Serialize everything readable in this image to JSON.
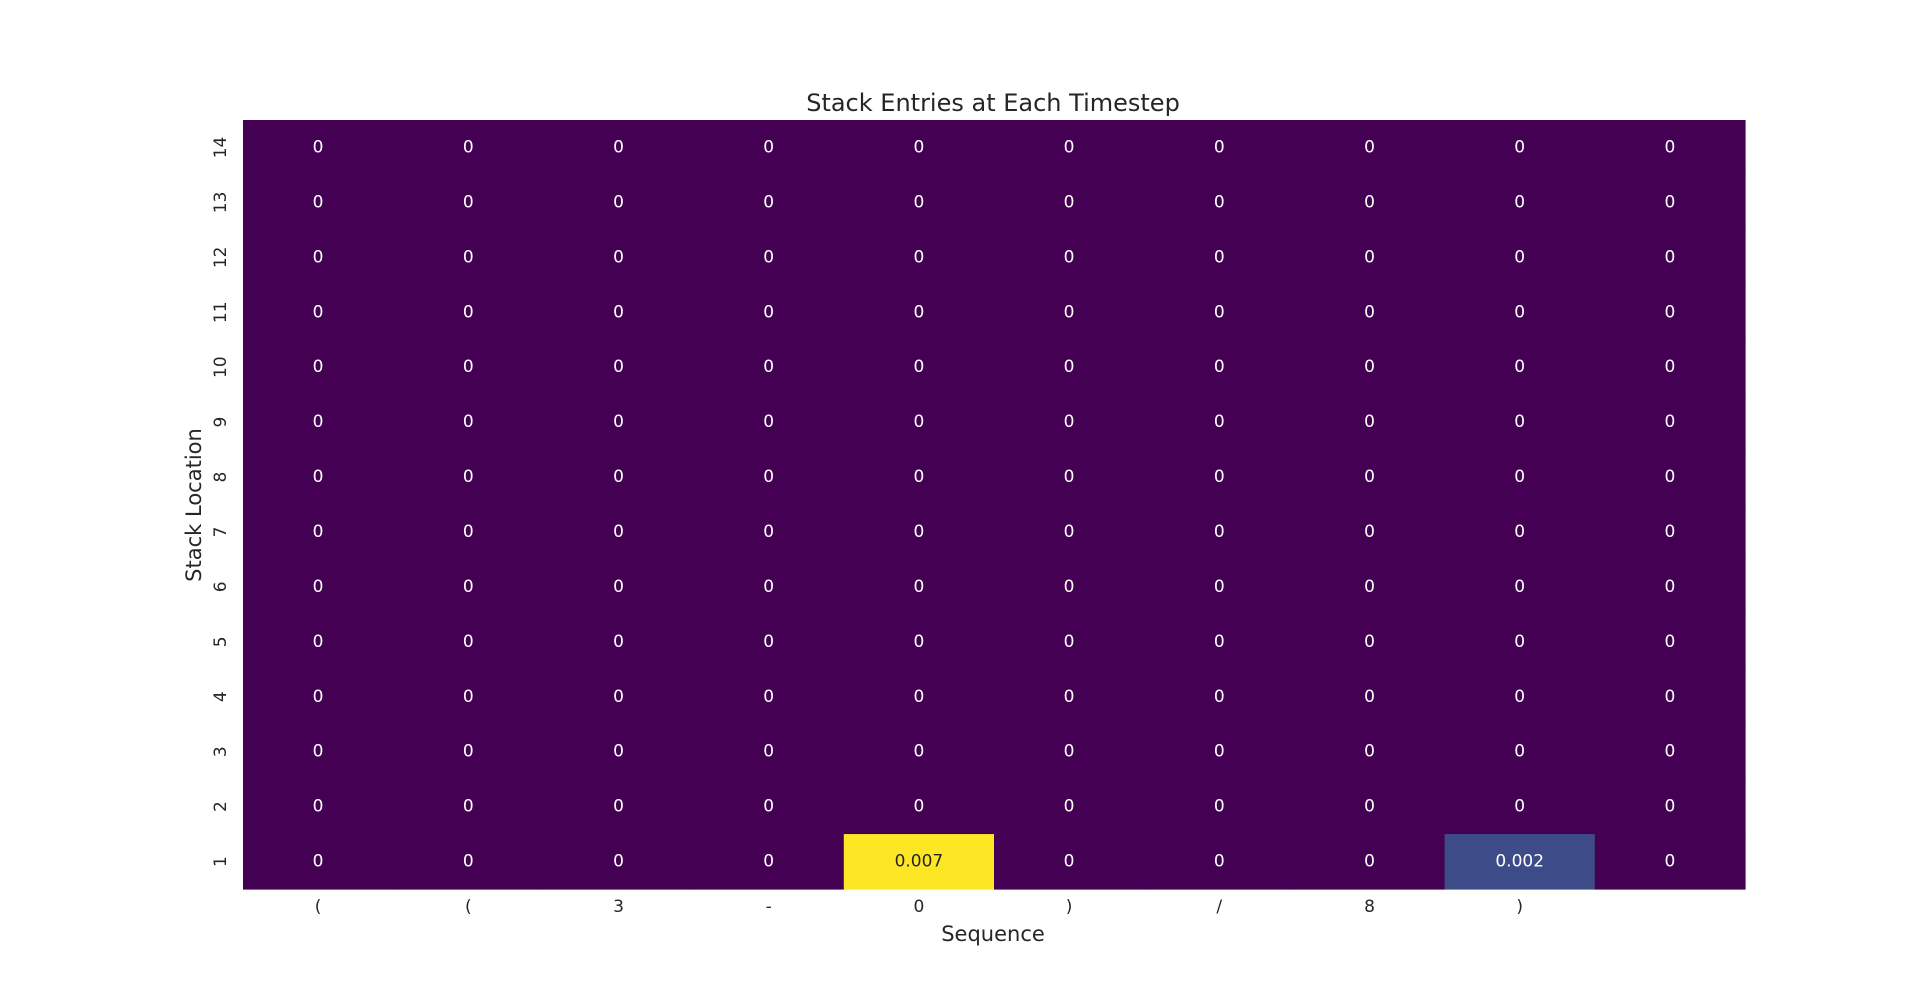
{
  "chart_data": {
    "type": "heatmap",
    "title": "Stack Entries at Each Timestep",
    "xlabel": "Sequence",
    "ylabel": "Stack Location",
    "x_tick_labels": [
      "(",
      "(",
      "3",
      "-",
      "0",
      ")",
      "/",
      "8",
      ")",
      ""
    ],
    "y_tick_labels": [
      "14",
      "13",
      "12",
      "11",
      "10",
      "9",
      "8",
      "7",
      "6",
      "5",
      "4",
      "3",
      "2",
      "1"
    ],
    "colormap": "viridis",
    "value_range": [
      0,
      0.007
    ],
    "grid": false,
    "values": [
      [
        0,
        0,
        0,
        0,
        0,
        0,
        0,
        0,
        0,
        0
      ],
      [
        0,
        0,
        0,
        0,
        0,
        0,
        0,
        0,
        0,
        0
      ],
      [
        0,
        0,
        0,
        0,
        0,
        0,
        0,
        0,
        0,
        0
      ],
      [
        0,
        0,
        0,
        0,
        0,
        0,
        0,
        0,
        0,
        0
      ],
      [
        0,
        0,
        0,
        0,
        0,
        0,
        0,
        0,
        0,
        0
      ],
      [
        0,
        0,
        0,
        0,
        0,
        0,
        0,
        0,
        0,
        0
      ],
      [
        0,
        0,
        0,
        0,
        0,
        0,
        0,
        0,
        0,
        0
      ],
      [
        0,
        0,
        0,
        0,
        0,
        0,
        0,
        0,
        0,
        0
      ],
      [
        0,
        0,
        0,
        0,
        0,
        0,
        0,
        0,
        0,
        0
      ],
      [
        0,
        0,
        0,
        0,
        0,
        0,
        0,
        0,
        0,
        0
      ],
      [
        0,
        0,
        0,
        0,
        0,
        0,
        0,
        0,
        0,
        0
      ],
      [
        0,
        0,
        0,
        0,
        0,
        0,
        0,
        0,
        0,
        0
      ],
      [
        0,
        0,
        0,
        0,
        0,
        0,
        0,
        0,
        0,
        0
      ],
      [
        0,
        0,
        0,
        0,
        0.007,
        0,
        0,
        0,
        0.002,
        0
      ]
    ],
    "value_labels": [
      [
        "0",
        "0",
        "0",
        "0",
        "0",
        "0",
        "0",
        "0",
        "0",
        "0"
      ],
      [
        "0",
        "0",
        "0",
        "0",
        "0",
        "0",
        "0",
        "0",
        "0",
        "0"
      ],
      [
        "0",
        "0",
        "0",
        "0",
        "0",
        "0",
        "0",
        "0",
        "0",
        "0"
      ],
      [
        "0",
        "0",
        "0",
        "0",
        "0",
        "0",
        "0",
        "0",
        "0",
        "0"
      ],
      [
        "0",
        "0",
        "0",
        "0",
        "0",
        "0",
        "0",
        "0",
        "0",
        "0"
      ],
      [
        "0",
        "0",
        "0",
        "0",
        "0",
        "0",
        "0",
        "0",
        "0",
        "0"
      ],
      [
        "0",
        "0",
        "0",
        "0",
        "0",
        "0",
        "0",
        "0",
        "0",
        "0"
      ],
      [
        "0",
        "0",
        "0",
        "0",
        "0",
        "0",
        "0",
        "0",
        "0",
        "0"
      ],
      [
        "0",
        "0",
        "0",
        "0",
        "0",
        "0",
        "0",
        "0",
        "0",
        "0"
      ],
      [
        "0",
        "0",
        "0",
        "0",
        "0",
        "0",
        "0",
        "0",
        "0",
        "0"
      ],
      [
        "0",
        "0",
        "0",
        "0",
        "0",
        "0",
        "0",
        "0",
        "0",
        "0"
      ],
      [
        "0",
        "0",
        "0",
        "0",
        "0",
        "0",
        "0",
        "0",
        "0",
        "0"
      ],
      [
        "0",
        "0",
        "0",
        "0",
        "0",
        "0",
        "0",
        "0",
        "0",
        "0"
      ],
      [
        "0",
        "0",
        "0",
        "0",
        "0.007",
        "0",
        "0",
        "0",
        "0.002",
        "0"
      ]
    ]
  }
}
